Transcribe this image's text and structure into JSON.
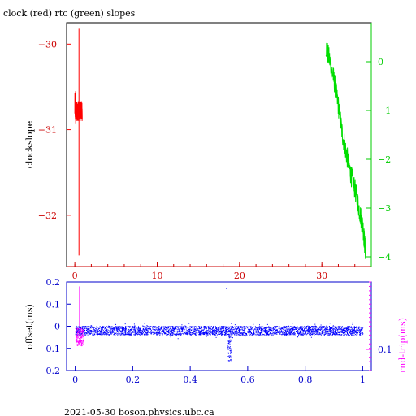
{
  "chart_data": [
    {
      "type": "line",
      "title": "clock (red) rtc (green) slopes",
      "xlabel": "",
      "ylabel": "clockslope",
      "xlim": [
        -1,
        36
      ],
      "ylim": [
        -32.6,
        -29.75
      ],
      "x_ticks": [
        0,
        10,
        20,
        30
      ],
      "y_ticks_left": [
        -30,
        -31,
        -32
      ],
      "y_ticks_right": [
        0,
        -1,
        -2,
        -3,
        -4
      ],
      "y_right_range": [
        -4.2,
        0.8
      ],
      "colors": {
        "red": "#ff0000",
        "green": "#00dd00",
        "axis_bottom": "#cc0000",
        "axis_right": "#00cc00"
      },
      "series": [
        {
          "color": "red",
          "axis": "left",
          "x_range": [
            0.0,
            0.9
          ],
          "center": -30.78,
          "noise": 0.12,
          "spike": {
            "x": 0.5,
            "ymin": -32.47,
            "ymax": -29.82
          }
        },
        {
          "color": "green",
          "axis": "right",
          "x": [
            30.5,
            31.0,
            31.5,
            32.0,
            32.5,
            33.0,
            33.5,
            34.0,
            34.5,
            35.0,
            35.3
          ],
          "y": [
            0.3,
            0.0,
            -0.4,
            -0.9,
            -1.5,
            -1.9,
            -2.3,
            -2.6,
            -3.0,
            -3.4,
            -3.9
          ]
        }
      ]
    },
    {
      "type": "scatter",
      "xlabel": "",
      "ylabel": "offset(ms)",
      "ylabel_right": "rnd-trip(ms)",
      "xlim": [
        -0.03,
        1.03
      ],
      "ylim": [
        -0.2,
        0.2
      ],
      "x_ticks": [
        "0",
        "0.2",
        "0.4",
        "0.6",
        "0.8",
        "1"
      ],
      "y_ticks_left": [
        "0.2",
        "0.1",
        "0",
        "-0.1",
        "-0.2"
      ],
      "y_ticks_right": [
        "0.1"
      ],
      "colors": {
        "blue": "#0000ff",
        "magenta": "#ff00ff",
        "axis": "#0000cc"
      },
      "series": [
        {
          "color": "blue",
          "x_range": [
            0.0,
            1.0
          ],
          "center": -0.02,
          "spread": 0.02,
          "dip": {
            "x": 0.535,
            "ymin": -0.16
          },
          "spike": {
            "x": 0.525,
            "y": 0.17
          }
        },
        {
          "color": "magenta",
          "x_range": [
            0.0,
            0.03
          ],
          "center": -0.05,
          "spread": 0.04,
          "max": 0.18
        }
      ]
    }
  ],
  "footer": {
    "text": "2021-05-30  boson.physics.ubc.ca"
  }
}
